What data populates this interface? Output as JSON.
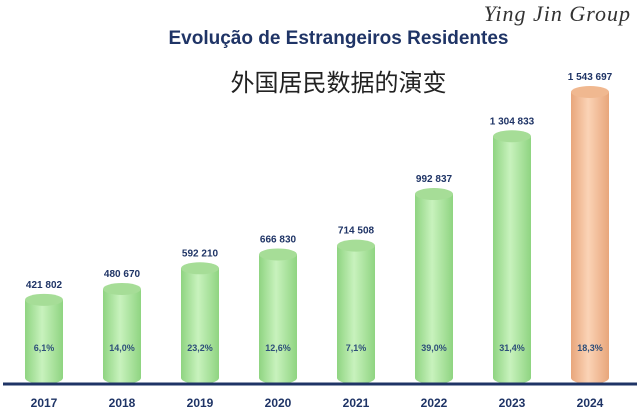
{
  "chart_data": {
    "type": "bar",
    "title": "Evolução de Estrangeiros Residentes",
    "subtitle": "外国居民数据的演变",
    "categories": [
      "2017",
      "2018",
      "2019",
      "2020",
      "2021",
      "2022",
      "2023",
      "2024"
    ],
    "values": [
      421802,
      480670,
      592210,
      666830,
      714508,
      992837,
      1304833,
      1543697
    ],
    "value_labels": [
      "421 802",
      "480 670",
      "592 210",
      "666 830",
      "714 508",
      "992 837",
      "1 304 833",
      "1 543 697"
    ],
    "growth_labels": [
      "6,1%",
      "14,0%",
      "23,2%",
      "12,6%",
      "7,1%",
      "39,0%",
      "31,4%",
      "18,3%"
    ],
    "ylim": [
      0,
      1543697
    ],
    "grid": false,
    "colors": {
      "default": "#b5eaa8",
      "highlight": "#f7c39f",
      "text": "#1f3466",
      "axis": "#1f3466"
    },
    "highlight_index": 7
  },
  "watermark": "Ying Jin Group"
}
